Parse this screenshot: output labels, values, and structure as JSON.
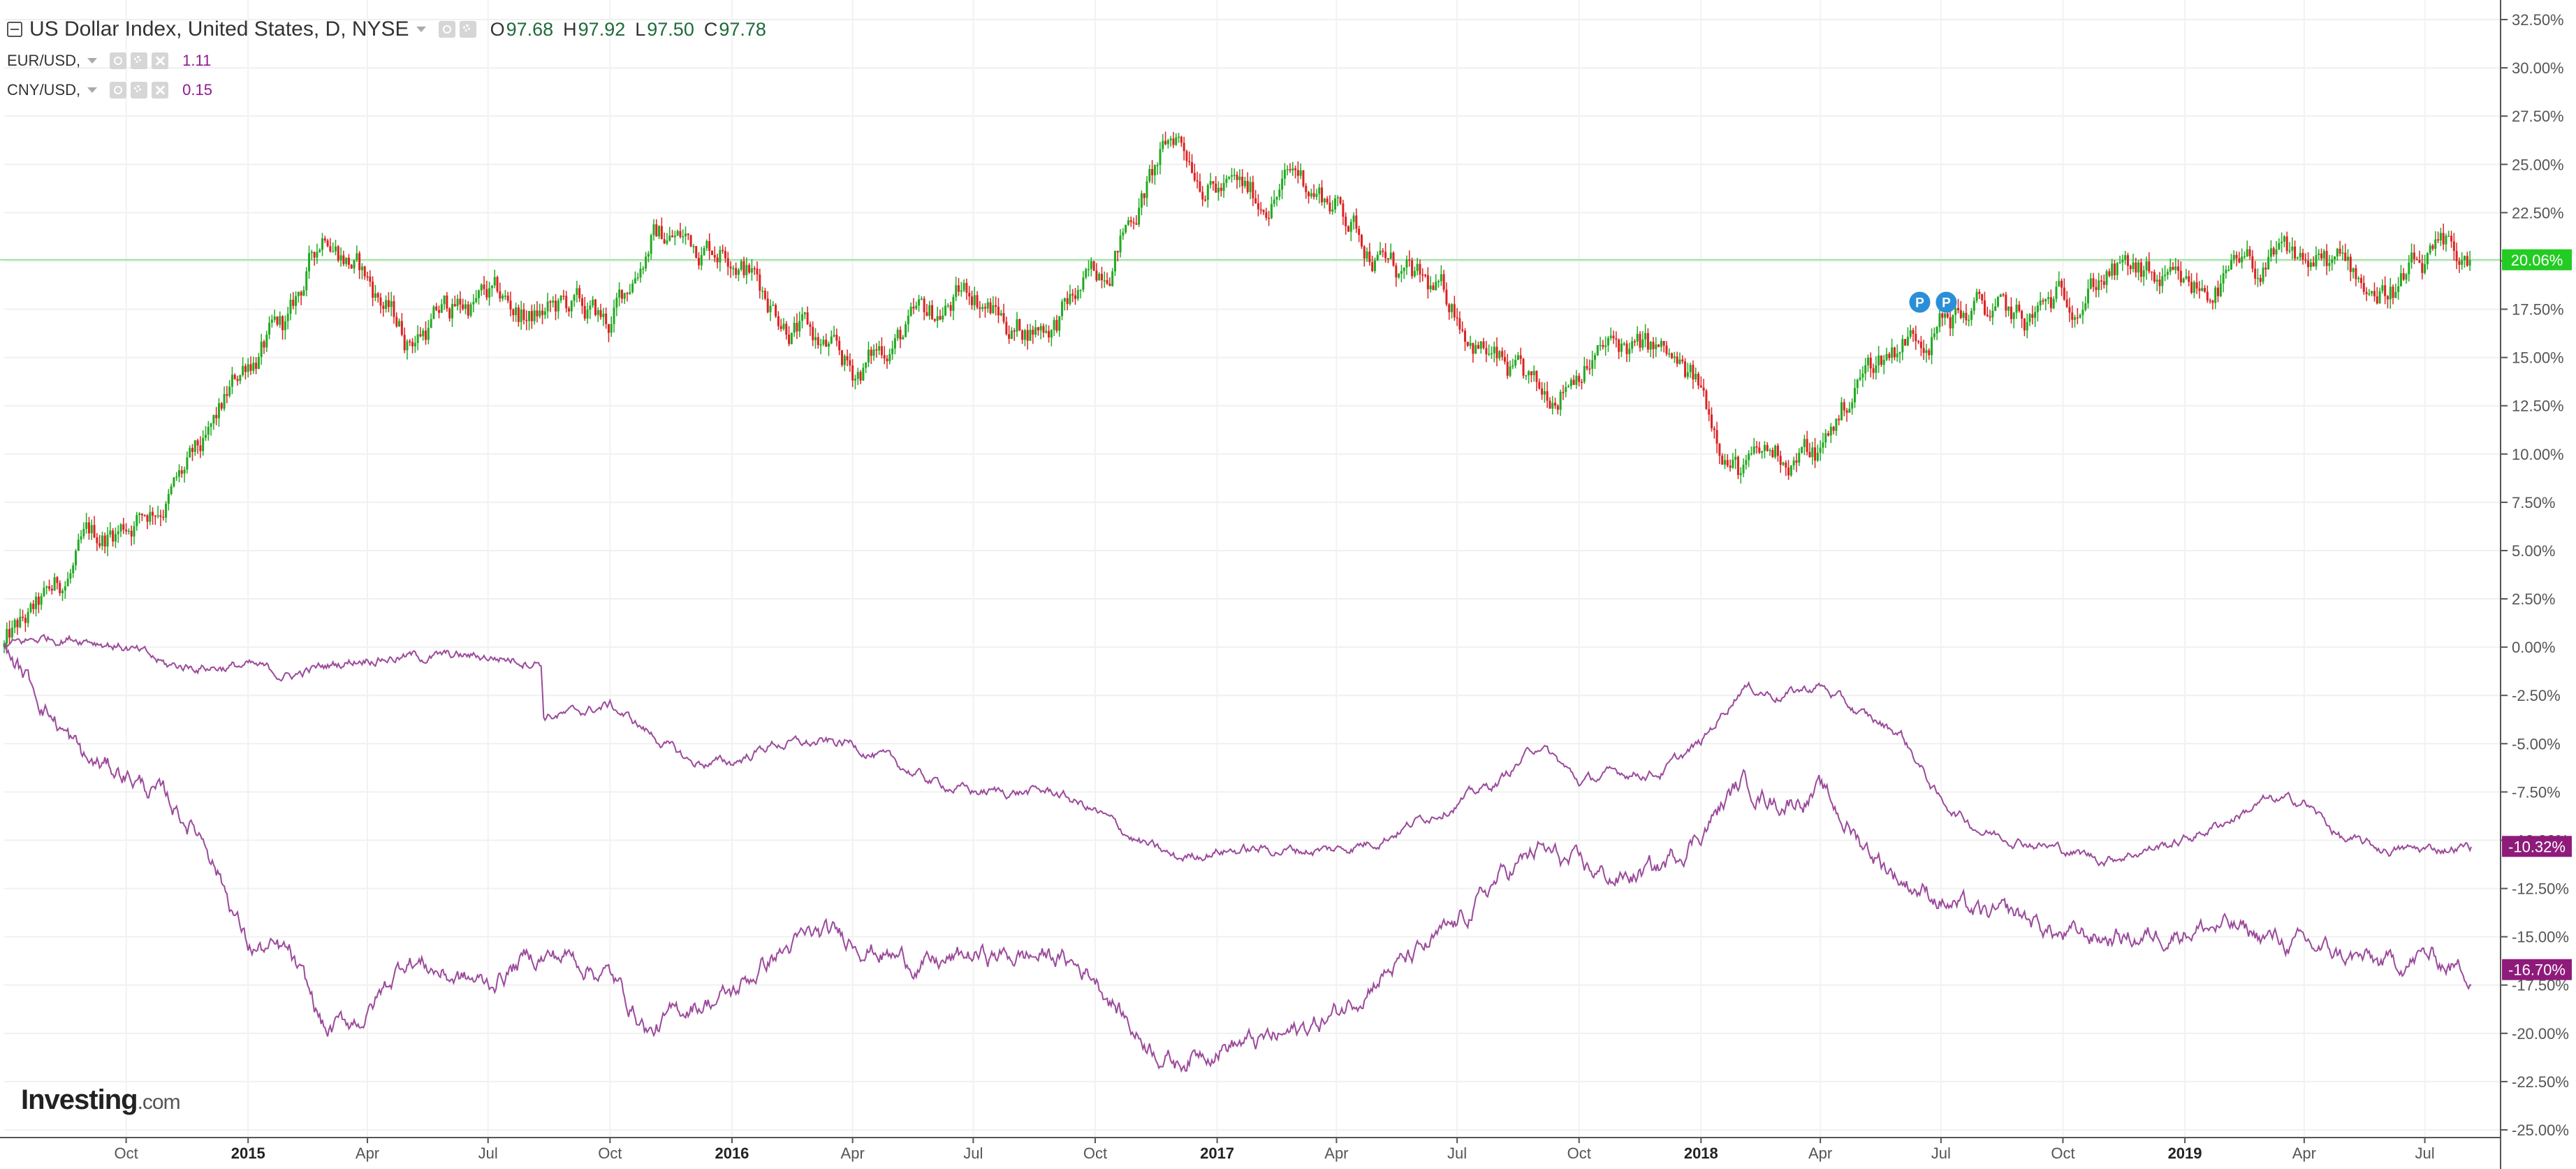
{
  "legend": {
    "main": {
      "symbol": "US Dollar Index, United States, D, NYSE",
      "open_label": "O",
      "open": "97.68",
      "high_label": "H",
      "high": "97.92",
      "low_label": "L",
      "low": "97.50",
      "close_label": "C",
      "close": "97.78"
    },
    "eur": {
      "symbol": "EUR/USD,",
      "value": "1.11"
    },
    "cny": {
      "symbol": "CNY/USD,",
      "value": "0.15"
    }
  },
  "logo": {
    "text": "Investing",
    "suffix": ".com"
  },
  "colors": {
    "up": "#22aa22",
    "down": "#dd2222",
    "compare": "#9b4a9b",
    "badge_main": "#22cc22",
    "badge_compare": "#8e1b7a",
    "event": "#2a8fd8"
  },
  "chart_data": {
    "type": "candlestick",
    "x_ticks": [
      "Oct",
      "2015",
      "Apr",
      "Jul",
      "Oct",
      "2016",
      "Apr",
      "Jul",
      "Oct",
      "2017",
      "Apr",
      "Jul",
      "Oct",
      "2018",
      "Apr",
      "Jul",
      "Oct",
      "2019",
      "Apr",
      "Jul"
    ],
    "x_range": [
      "2014-07-01",
      "2019-08-05"
    ],
    "y_unit": "%",
    "ylim": [
      -25,
      32.5
    ],
    "y_ticks": [
      "32.50%",
      "30.00%",
      "27.50%",
      "25.00%",
      "22.50%",
      "20.00%",
      "17.50%",
      "15.00%",
      "12.50%",
      "10.00%",
      "7.50%",
      "5.00%",
      "2.50%",
      "0.00%",
      "-2.50%",
      "-5.00%",
      "-7.50%",
      "-10.00%",
      "-12.50%",
      "-15.00%",
      "-17.50%",
      "-20.00%",
      "-22.50%",
      "-25.00%"
    ],
    "grid": true,
    "series": [
      {
        "name": "US Dollar Index",
        "style": "candles",
        "points": [
          [
            "2014-07-01",
            0
          ],
          [
            "2014-08-01",
            2
          ],
          [
            "2014-09-01",
            5
          ],
          [
            "2014-10-01",
            6.5
          ],
          [
            "2014-11-01",
            8
          ],
          [
            "2014-12-01",
            10
          ],
          [
            "2015-01-01",
            15
          ],
          [
            "2015-02-01",
            16.5
          ],
          [
            "2015-03-01",
            22
          ],
          [
            "2015-04-01",
            19
          ],
          [
            "2015-05-01",
            16
          ],
          [
            "2015-06-01",
            17.5
          ],
          [
            "2015-07-01",
            18
          ],
          [
            "2015-08-01",
            17
          ],
          [
            "2015-09-01",
            17.5
          ],
          [
            "2015-10-01",
            16.5
          ],
          [
            "2015-11-01",
            21.5
          ],
          [
            "2015-12-01",
            21
          ],
          [
            "2016-01-01",
            21
          ],
          [
            "2016-02-01",
            18
          ],
          [
            "2016-03-01",
            16
          ],
          [
            "2016-04-01",
            14
          ],
          [
            "2016-05-01",
            16
          ],
          [
            "2016-06-01",
            17
          ],
          [
            "2016-07-01",
            18.5
          ],
          [
            "2016-08-01",
            16.5
          ],
          [
            "2016-09-01",
            17
          ],
          [
            "2016-10-01",
            19
          ],
          [
            "2016-11-01",
            23
          ],
          [
            "2016-12-01",
            26.5
          ],
          [
            "2017-01-01",
            24
          ],
          [
            "2017-02-01",
            23
          ],
          [
            "2017-03-01",
            24.5
          ],
          [
            "2017-04-01",
            23
          ],
          [
            "2017-05-01",
            20.5
          ],
          [
            "2017-06-01",
            18.5
          ],
          [
            "2017-07-01",
            17.5
          ],
          [
            "2017-08-01",
            14.5
          ],
          [
            "2017-09-01",
            12.5
          ],
          [
            "2017-10-01",
            15
          ],
          [
            "2017-11-01",
            15.5
          ],
          [
            "2017-12-01",
            15
          ],
          [
            "2018-01-01",
            13
          ],
          [
            "2018-02-01",
            9
          ],
          [
            "2018-03-01",
            10
          ],
          [
            "2018-04-01",
            10
          ],
          [
            "2018-05-01",
            14
          ],
          [
            "2018-06-01",
            16
          ],
          [
            "2018-07-01",
            17
          ],
          [
            "2018-08-01",
            17.5
          ],
          [
            "2018-09-01",
            16.5
          ],
          [
            "2018-10-01",
            18
          ],
          [
            "2018-11-01",
            19.5
          ],
          [
            "2018-12-01",
            19
          ],
          [
            "2019-01-01",
            18
          ],
          [
            "2019-02-01",
            19
          ],
          [
            "2019-03-01",
            19.5
          ],
          [
            "2019-04-01",
            20
          ],
          [
            "2019-05-01",
            19.5
          ],
          [
            "2019-06-01",
            18.5
          ],
          [
            "2019-07-01",
            19.5
          ],
          [
            "2019-08-01",
            20.06
          ]
        ]
      },
      {
        "name": "EUR/USD",
        "style": "line",
        "points": [
          [
            "2014-07-01",
            0
          ],
          [
            "2014-08-01",
            0.5
          ],
          [
            "2014-09-01",
            0.5
          ],
          [
            "2014-10-01",
            0
          ],
          [
            "2014-11-01",
            -1
          ],
          [
            "2014-12-01",
            -1
          ],
          [
            "2015-01-01",
            -1
          ],
          [
            "2015-02-01",
            -1.5
          ],
          [
            "2015-03-01",
            -1
          ],
          [
            "2015-04-01",
            -0.5
          ],
          [
            "2015-05-01",
            -0.5
          ],
          [
            "2015-06-01",
            -0.5
          ],
          [
            "2015-07-01",
            -0.5
          ],
          [
            "2015-08-10",
            -0.7
          ],
          [
            "2015-08-12",
            -3.5
          ],
          [
            "2015-09-01",
            -3.5
          ],
          [
            "2015-10-01",
            -3
          ],
          [
            "2015-11-01",
            -4.5
          ],
          [
            "2015-12-01",
            -6
          ],
          [
            "2016-01-01",
            -6
          ],
          [
            "2016-02-01",
            -5
          ],
          [
            "2016-03-01",
            -5
          ],
          [
            "2016-04-01",
            -5
          ],
          [
            "2016-05-01",
            -6
          ],
          [
            "2016-06-01",
            -7
          ],
          [
            "2016-07-01",
            -7.5
          ],
          [
            "2016-08-01",
            -7.5
          ],
          [
            "2016-09-01",
            -7.5
          ],
          [
            "2016-10-01",
            -8.5
          ],
          [
            "2016-11-01",
            -10
          ],
          [
            "2016-12-01",
            -11
          ],
          [
            "2017-01-01",
            -10.5
          ],
          [
            "2017-02-01",
            -10.5
          ],
          [
            "2017-03-01",
            -10.5
          ],
          [
            "2017-04-01",
            -10.5
          ],
          [
            "2017-05-01",
            -10
          ],
          [
            "2017-06-01",
            -9
          ],
          [
            "2017-07-01",
            -8
          ],
          [
            "2017-08-01",
            -7
          ],
          [
            "2017-09-01",
            -5
          ],
          [
            "2017-10-01",
            -7
          ],
          [
            "2017-11-01",
            -6.5
          ],
          [
            "2017-12-01",
            -6.5
          ],
          [
            "2018-01-01",
            -5
          ],
          [
            "2018-02-01",
            -2
          ],
          [
            "2018-03-01",
            -2.5
          ],
          [
            "2018-04-01",
            -2
          ],
          [
            "2018-05-01",
            -3.5
          ],
          [
            "2018-06-01",
            -4.5
          ],
          [
            "2018-07-01",
            -8
          ],
          [
            "2018-08-01",
            -9.5
          ],
          [
            "2018-09-01",
            -10
          ],
          [
            "2018-10-01",
            -10.5
          ],
          [
            "2018-11-01",
            -11
          ],
          [
            "2018-12-01",
            -10.5
          ],
          [
            "2019-01-01",
            -10
          ],
          [
            "2019-02-01",
            -9
          ],
          [
            "2019-03-01",
            -8
          ],
          [
            "2019-04-01",
            -8
          ],
          [
            "2019-05-01",
            -10
          ],
          [
            "2019-06-01",
            -10.5
          ],
          [
            "2019-07-01",
            -10.5
          ],
          [
            "2019-08-01",
            -10.32
          ]
        ]
      },
      {
        "name": "CNY/USD",
        "style": "line",
        "points": [
          [
            "2014-07-01",
            0
          ],
          [
            "2014-08-01",
            -3
          ],
          [
            "2014-09-01",
            -6
          ],
          [
            "2014-10-01",
            -6.5
          ],
          [
            "2014-11-01",
            -8
          ],
          [
            "2014-12-01",
            -10
          ],
          [
            "2015-01-01",
            -15.5
          ],
          [
            "2015-02-01",
            -16
          ],
          [
            "2015-03-01",
            -20
          ],
          [
            "2015-04-01",
            -19
          ],
          [
            "2015-05-01",
            -16
          ],
          [
            "2015-06-01",
            -17
          ],
          [
            "2015-07-01",
            -17.5
          ],
          [
            "2015-08-01",
            -16
          ],
          [
            "2015-09-01",
            -16
          ],
          [
            "2015-10-01",
            -17
          ],
          [
            "2015-11-01",
            -20
          ],
          [
            "2015-12-01",
            -18.5
          ],
          [
            "2016-01-01",
            -18
          ],
          [
            "2016-02-01",
            -16
          ],
          [
            "2016-03-01",
            -15
          ],
          [
            "2016-04-01",
            -15
          ],
          [
            "2016-05-01",
            -16
          ],
          [
            "2016-06-01",
            -16.5
          ],
          [
            "2016-07-01",
            -16
          ],
          [
            "2016-08-01",
            -16
          ],
          [
            "2016-09-01",
            -16
          ],
          [
            "2016-10-01",
            -17
          ],
          [
            "2016-11-01",
            -20
          ],
          [
            "2016-12-01",
            -21.5
          ],
          [
            "2017-01-01",
            -20.5
          ],
          [
            "2017-02-01",
            -20.5
          ],
          [
            "2017-03-01",
            -20
          ],
          [
            "2017-04-01",
            -19
          ],
          [
            "2017-05-01",
            -17
          ],
          [
            "2017-06-01",
            -16
          ],
          [
            "2017-07-01",
            -14.5
          ],
          [
            "2017-08-01",
            -12
          ],
          [
            "2017-09-01",
            -10.5
          ],
          [
            "2017-10-01",
            -11.5
          ],
          [
            "2017-11-01",
            -12
          ],
          [
            "2017-12-01",
            -11.5
          ],
          [
            "2018-01-01",
            -9.5
          ],
          [
            "2018-02-01",
            -7
          ],
          [
            "2018-03-01",
            -8
          ],
          [
            "2018-04-01",
            -7.5
          ],
          [
            "2018-05-01",
            -10
          ],
          [
            "2018-06-01",
            -12
          ],
          [
            "2018-07-01",
            -13
          ],
          [
            "2018-08-01",
            -14
          ],
          [
            "2018-09-01",
            -14
          ],
          [
            "2018-10-01",
            -15
          ],
          [
            "2018-11-01",
            -15
          ],
          [
            "2018-12-01",
            -15
          ],
          [
            "2019-01-01",
            -14.5
          ],
          [
            "2019-02-01",
            -14.5
          ],
          [
            "2019-03-01",
            -15
          ],
          [
            "2019-04-01",
            -15.5
          ],
          [
            "2019-05-01",
            -16
          ],
          [
            "2019-06-01",
            -16.5
          ],
          [
            "2019-07-01",
            -16
          ],
          [
            "2019-08-01",
            -16.7
          ]
        ]
      }
    ],
    "horizontal_line": {
      "value": 20.06
    },
    "badges": [
      {
        "series": "US Dollar Index",
        "label": "20.06%",
        "value": 20.06
      },
      {
        "series": "EUR/USD",
        "label": "-10.32%",
        "value": -10.32
      },
      {
        "series": "CNY/USD",
        "label": "-16.70%",
        "value": -16.7
      }
    ],
    "events": [
      {
        "label": "P",
        "date": "2018-06-15",
        "value": 17.5
      },
      {
        "label": "P",
        "date": "2018-07-05",
        "value": 17.5
      }
    ]
  }
}
